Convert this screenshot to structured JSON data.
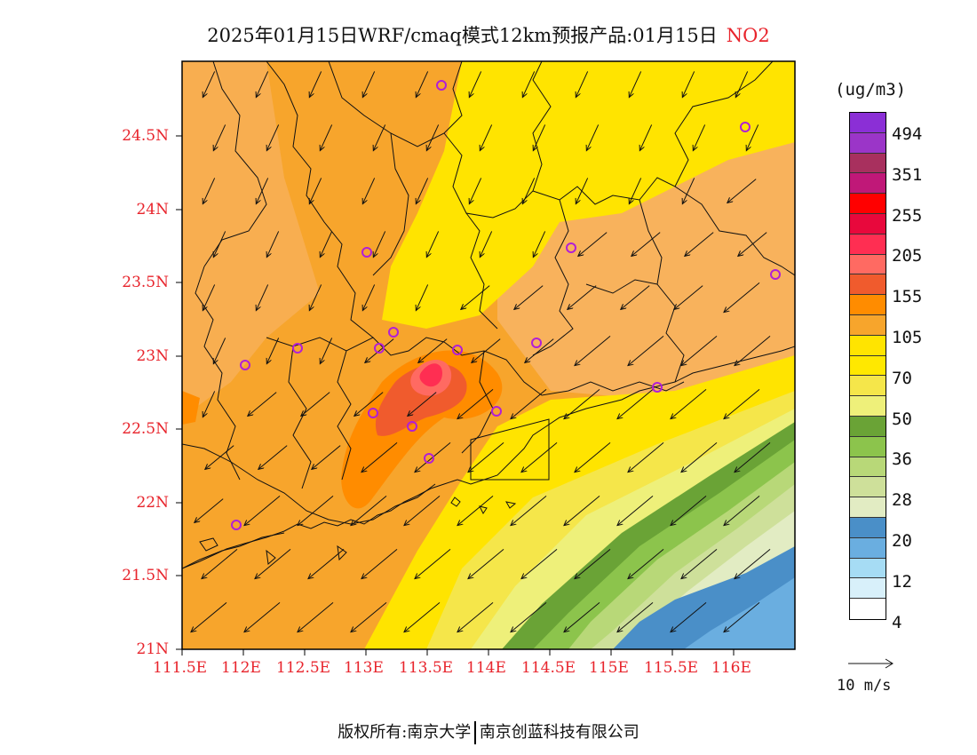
{
  "title": {
    "text": "2025年01月15日WRF/cmaq模式12km预报产品:01月15日",
    "pollutant": "NO2"
  },
  "axes": {
    "y_ticks": [
      "24.5N",
      "24N",
      "23.5N",
      "23N",
      "22.5N",
      "22N",
      "21.5N",
      "21N"
    ],
    "x_ticks": [
      "111.5E",
      "112E",
      "112.5E",
      "113E",
      "113.5E",
      "114E",
      "114.5E",
      "115E",
      "115.5E",
      "116E"
    ]
  },
  "colorbar": {
    "unit": "(ug/m3)",
    "colors": [
      "#8b2fd6",
      "#9b35c8",
      "#a8305e",
      "#c01878",
      "#ff0000",
      "#e8083c",
      "#ff2e52",
      "#ff6a62",
      "#f05b2d",
      "#ff8c00",
      "#f7a52c",
      "#ffe400",
      "#ffe800",
      "#f5e64a",
      "#eef07a",
      "#6aa336",
      "#8cc44c",
      "#b8d878",
      "#cee09a",
      "#e2ecc3",
      "#4a8fc8",
      "#6aaee0",
      "#a6dcf4",
      "#d8f0fa",
      "#ffffff"
    ],
    "labels": [
      "494",
      "351",
      "255",
      "205",
      "155",
      "105",
      "70",
      "50",
      "36",
      "28",
      "20",
      "12",
      "4"
    ]
  },
  "wind_reference": {
    "label": "10 m/s"
  },
  "footer": {
    "copyright_left": "版权所有:南京大学",
    "copyright_right": "南京创蓝科技有限公司"
  },
  "map_colors": {
    "base_orange": "#f7a52c",
    "light_orange": "#f8b25c",
    "yellow": "#ffe400",
    "light_yellow": "#f5e64a",
    "pale_yellow": "#eef07a",
    "dark_green": "#6aa336",
    "mid_green": "#8cc44c",
    "light_green": "#b8d878",
    "pale_green": "#cee09a",
    "greenish_white": "#e2ecc3",
    "deep_blue": "#4a8fc8",
    "mid_blue": "#6aaee0",
    "hot_orange": "#ff8c00",
    "red_orange": "#f05b2d",
    "salmon": "#ff6a62",
    "pink_red": "#ff2e52",
    "monitor_site": "#b11fd6"
  }
}
